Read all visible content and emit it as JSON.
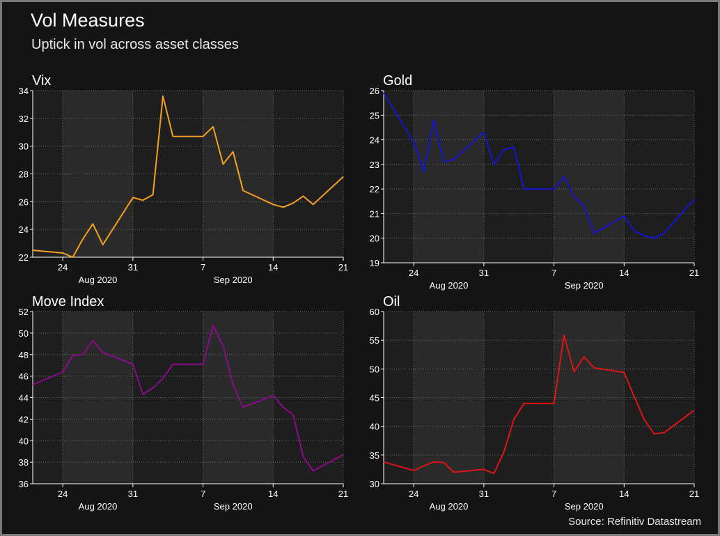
{
  "header": {
    "title": "Vol Measures",
    "subtitle": "Uptick in vol across asset classes",
    "source": "Source: Refinitiv Datastream"
  },
  "colors": {
    "background": "#141414",
    "plot_background": "#1e1e1e",
    "weekend_shade": "#2a2a2a",
    "grid": "#6a6a6a",
    "text": "#ffffff",
    "frame": "#7a7a7a"
  },
  "chart_data": [
    {
      "type": "line",
      "title": "Vix",
      "color": "#f5a01e",
      "x": [
        "2020-08-21",
        "2020-08-24",
        "2020-08-25",
        "2020-08-26",
        "2020-08-27",
        "2020-08-28",
        "2020-08-31",
        "2020-09-01",
        "2020-09-02",
        "2020-09-03",
        "2020-09-04",
        "2020-09-07",
        "2020-09-08",
        "2020-09-09",
        "2020-09-10",
        "2020-09-11",
        "2020-09-14",
        "2020-09-15",
        "2020-09-16",
        "2020-09-17",
        "2020-09-18",
        "2020-09-21"
      ],
      "values": [
        22.5,
        22.3,
        22.0,
        23.3,
        24.4,
        22.9,
        26.3,
        26.1,
        26.5,
        33.6,
        30.7,
        30.7,
        31.4,
        28.7,
        29.6,
        26.8,
        25.8,
        25.6,
        25.9,
        26.4,
        25.8,
        27.8
      ],
      "ylim": [
        22,
        34
      ],
      "yticks": [
        22,
        24,
        26,
        28,
        30,
        32,
        34
      ],
      "xticks": [
        "24",
        "31",
        "7",
        "14",
        "21"
      ],
      "xtick_dates": [
        "2020-08-24",
        "2020-08-31",
        "2020-09-07",
        "2020-09-14",
        "2020-09-21"
      ],
      "month_labels": [
        "Aug 2020",
        "Sep 2020"
      ],
      "grid": true
    },
    {
      "type": "line",
      "title": "Gold",
      "color": "#1414d2",
      "x": [
        "2020-08-21",
        "2020-08-24",
        "2020-08-25",
        "2020-08-26",
        "2020-08-27",
        "2020-08-28",
        "2020-08-31",
        "2020-09-01",
        "2020-09-02",
        "2020-09-03",
        "2020-09-04",
        "2020-09-07",
        "2020-09-08",
        "2020-09-09",
        "2020-09-10",
        "2020-09-11",
        "2020-09-14",
        "2020-09-15",
        "2020-09-16",
        "2020-09-17",
        "2020-09-18",
        "2020-09-21"
      ],
      "values": [
        25.9,
        23.9,
        22.7,
        24.8,
        23.1,
        23.2,
        24.3,
        23.0,
        23.6,
        23.7,
        22.0,
        22.0,
        22.5,
        21.7,
        21.3,
        20.2,
        20.9,
        20.3,
        20.1,
        20.0,
        20.2,
        21.6
      ],
      "ylim": [
        19,
        26
      ],
      "yticks": [
        19,
        20,
        21,
        22,
        23,
        24,
        25,
        26
      ],
      "xticks": [
        "24",
        "31",
        "7",
        "14",
        "21"
      ],
      "xtick_dates": [
        "2020-08-24",
        "2020-08-31",
        "2020-09-07",
        "2020-09-14",
        "2020-09-21"
      ],
      "month_labels": [
        "Aug 2020",
        "Sep 2020"
      ],
      "grid": true
    },
    {
      "type": "line",
      "title": "Move Index",
      "color": "#8c0a8c",
      "x": [
        "2020-08-21",
        "2020-08-24",
        "2020-08-25",
        "2020-08-26",
        "2020-08-27",
        "2020-08-28",
        "2020-08-31",
        "2020-09-01",
        "2020-09-02",
        "2020-09-03",
        "2020-09-04",
        "2020-09-07",
        "2020-09-08",
        "2020-09-09",
        "2020-09-10",
        "2020-09-11",
        "2020-09-14",
        "2020-09-15",
        "2020-09-16",
        "2020-09-17",
        "2020-09-18",
        "2020-09-21"
      ],
      "values": [
        45.2,
        46.4,
        47.9,
        48.0,
        49.3,
        48.2,
        47.1,
        44.3,
        44.9,
        45.8,
        47.1,
        47.1,
        50.7,
        48.8,
        45.2,
        43.1,
        44.2,
        43.1,
        42.4,
        38.5,
        37.2,
        38.7
      ],
      "ylim": [
        36,
        52
      ],
      "yticks": [
        36,
        38,
        40,
        42,
        44,
        46,
        48,
        50,
        52
      ],
      "xticks": [
        "24",
        "31",
        "7",
        "14",
        "21"
      ],
      "xtick_dates": [
        "2020-08-24",
        "2020-08-31",
        "2020-09-07",
        "2020-09-14",
        "2020-09-21"
      ],
      "month_labels": [
        "Aug 2020",
        "Sep 2020"
      ],
      "grid": true
    },
    {
      "type": "line",
      "title": "Oil",
      "color": "#e11414",
      "x": [
        "2020-08-21",
        "2020-08-24",
        "2020-08-25",
        "2020-08-26",
        "2020-08-27",
        "2020-08-28",
        "2020-08-31",
        "2020-09-01",
        "2020-09-02",
        "2020-09-03",
        "2020-09-04",
        "2020-09-07",
        "2020-09-08",
        "2020-09-09",
        "2020-09-10",
        "2020-09-11",
        "2020-09-14",
        "2020-09-15",
        "2020-09-16",
        "2020-09-17",
        "2020-09-18",
        "2020-09-21"
      ],
      "values": [
        33.8,
        32.3,
        33.1,
        33.8,
        33.7,
        32.0,
        32.5,
        31.8,
        35.5,
        41.2,
        44.0,
        44.0,
        55.9,
        49.5,
        52.1,
        50.2,
        49.4,
        45.2,
        41.2,
        38.7,
        38.9,
        42.8
      ],
      "ylim": [
        30,
        60
      ],
      "yticks": [
        30,
        35,
        40,
        45,
        50,
        55,
        60
      ],
      "xticks": [
        "24",
        "31",
        "7",
        "14",
        "21"
      ],
      "xtick_dates": [
        "2020-08-24",
        "2020-08-31",
        "2020-09-07",
        "2020-09-14",
        "2020-09-21"
      ],
      "month_labels": [
        "Aug 2020",
        "Sep 2020"
      ],
      "grid": true
    }
  ]
}
